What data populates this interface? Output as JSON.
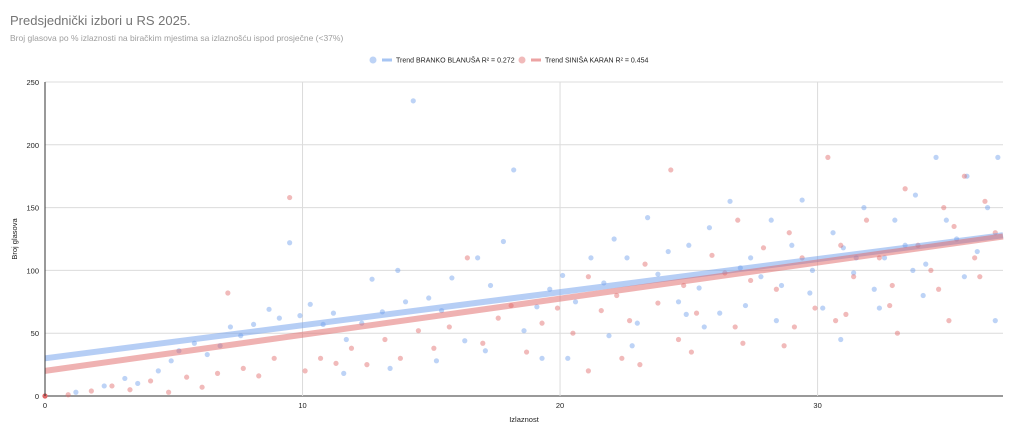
{
  "chart_data": {
    "type": "scatter",
    "title": "Predsjednički izbori u RS 2025.",
    "subtitle": "Broj glasova po % izlaznosti na biračkim mjestima sa izlaznošću ispod prosječne (<37%)",
    "xlabel": "Izlaznost",
    "ylabel": "Broj glasova",
    "xlim": [
      0,
      37.2
    ],
    "ylim": [
      0,
      250
    ],
    "x_ticks": [
      "0",
      "10",
      "20",
      "30"
    ],
    "y_ticks": [
      "0",
      "50",
      "100",
      "150",
      "200",
      "250"
    ],
    "grid": true,
    "legend_position": "top-center",
    "series": [
      {
        "name": "BRANKO BLANUŠA",
        "color": "#6d9eeb",
        "trend_label": "Trend BRANKO BLANUŠA R² = 0.272",
        "trend": {
          "x": [
            0,
            37.2
          ],
          "y": [
            30,
            128
          ]
        },
        "points": [
          [
            1.2,
            3
          ],
          [
            2.3,
            8
          ],
          [
            3.1,
            14
          ],
          [
            3.6,
            10
          ],
          [
            4.4,
            20
          ],
          [
            4.9,
            28
          ],
          [
            5.2,
            36
          ],
          [
            5.8,
            42
          ],
          [
            6.3,
            33
          ],
          [
            6.8,
            40
          ],
          [
            7.2,
            55
          ],
          [
            7.6,
            48
          ],
          [
            8.1,
            57
          ],
          [
            8.7,
            69
          ],
          [
            9.1,
            62
          ],
          [
            9.5,
            122
          ],
          [
            9.9,
            64
          ],
          [
            10.3,
            73
          ],
          [
            10.8,
            57
          ],
          [
            11.2,
            66
          ],
          [
            11.7,
            45
          ],
          [
            12.3,
            58
          ],
          [
            12.7,
            93
          ],
          [
            13.1,
            67
          ],
          [
            13.7,
            100
          ],
          [
            14.0,
            75
          ],
          [
            14.3,
            235
          ],
          [
            14.9,
            78
          ],
          [
            15.4,
            68
          ],
          [
            15.8,
            94
          ],
          [
            16.3,
            44
          ],
          [
            16.8,
            110
          ],
          [
            17.3,
            88
          ],
          [
            17.8,
            123
          ],
          [
            18.2,
            180
          ],
          [
            18.6,
            52
          ],
          [
            19.1,
            71
          ],
          [
            19.6,
            85
          ],
          [
            20.1,
            96
          ],
          [
            20.6,
            75
          ],
          [
            21.2,
            110
          ],
          [
            21.7,
            90
          ],
          [
            22.1,
            125
          ],
          [
            22.6,
            110
          ],
          [
            23.0,
            58
          ],
          [
            23.4,
            142
          ],
          [
            23.8,
            97
          ],
          [
            24.2,
            115
          ],
          [
            24.6,
            75
          ],
          [
            25.0,
            120
          ],
          [
            25.4,
            86
          ],
          [
            25.8,
            134
          ],
          [
            26.2,
            66
          ],
          [
            26.6,
            155
          ],
          [
            27.0,
            102
          ],
          [
            27.4,
            110
          ],
          [
            27.8,
            95
          ],
          [
            28.2,
            140
          ],
          [
            28.6,
            88
          ],
          [
            29.0,
            120
          ],
          [
            29.4,
            156
          ],
          [
            29.8,
            100
          ],
          [
            30.2,
            70
          ],
          [
            30.6,
            130
          ],
          [
            31.0,
            118
          ],
          [
            31.4,
            98
          ],
          [
            31.8,
            150
          ],
          [
            32.2,
            85
          ],
          [
            32.6,
            110
          ],
          [
            33.0,
            140
          ],
          [
            33.4,
            120
          ],
          [
            33.8,
            160
          ],
          [
            34.2,
            105
          ],
          [
            34.6,
            190
          ],
          [
            35.0,
            140
          ],
          [
            35.4,
            125
          ],
          [
            35.8,
            175
          ],
          [
            36.2,
            115
          ],
          [
            36.6,
            150
          ],
          [
            37.0,
            190
          ],
          [
            20.3,
            30
          ],
          [
            22.8,
            40
          ],
          [
            25.6,
            55
          ],
          [
            28.4,
            60
          ],
          [
            30.9,
            45
          ],
          [
            32.4,
            70
          ],
          [
            34.1,
            80
          ],
          [
            35.7,
            95
          ],
          [
            36.9,
            60
          ],
          [
            33.7,
            100
          ],
          [
            31.5,
            110
          ],
          [
            29.7,
            82
          ],
          [
            27.2,
            72
          ],
          [
            24.9,
            65
          ],
          [
            21.9,
            48
          ],
          [
            19.3,
            30
          ],
          [
            17.1,
            36
          ],
          [
            15.2,
            28
          ],
          [
            13.4,
            22
          ],
          [
            11.6,
            18
          ]
        ]
      },
      {
        "name": "SINIŠA KARAN",
        "color": "#e06666",
        "trend_label": "Trend SINIŠA KARAN R² = 0.454",
        "trend": {
          "x": [
            0,
            37.2
          ],
          "y": [
            20,
            127
          ]
        },
        "points": [
          [
            0.9,
            1
          ],
          [
            1.8,
            4
          ],
          [
            2.6,
            8
          ],
          [
            3.3,
            5
          ],
          [
            4.1,
            12
          ],
          [
            4.8,
            3
          ],
          [
            5.5,
            15
          ],
          [
            6.1,
            7
          ],
          [
            6.7,
            18
          ],
          [
            7.1,
            82
          ],
          [
            7.7,
            22
          ],
          [
            8.3,
            16
          ],
          [
            8.9,
            30
          ],
          [
            9.5,
            158
          ],
          [
            10.1,
            20
          ],
          [
            10.7,
            30
          ],
          [
            11.3,
            26
          ],
          [
            11.9,
            38
          ],
          [
            12.5,
            25
          ],
          [
            13.2,
            45
          ],
          [
            13.8,
            30
          ],
          [
            14.5,
            52
          ],
          [
            15.1,
            38
          ],
          [
            15.7,
            55
          ],
          [
            16.4,
            110
          ],
          [
            17.0,
            42
          ],
          [
            17.6,
            62
          ],
          [
            18.1,
            72
          ],
          [
            18.7,
            35
          ],
          [
            19.3,
            58
          ],
          [
            19.9,
            70
          ],
          [
            20.5,
            50
          ],
          [
            21.1,
            95
          ],
          [
            21.6,
            68
          ],
          [
            22.2,
            80
          ],
          [
            22.7,
            60
          ],
          [
            23.3,
            105
          ],
          [
            23.8,
            74
          ],
          [
            24.3,
            180
          ],
          [
            24.8,
            88
          ],
          [
            25.3,
            66
          ],
          [
            25.9,
            112
          ],
          [
            26.4,
            98
          ],
          [
            26.9,
            140
          ],
          [
            27.4,
            92
          ],
          [
            27.9,
            118
          ],
          [
            28.4,
            85
          ],
          [
            28.9,
            130
          ],
          [
            29.4,
            110
          ],
          [
            29.9,
            70
          ],
          [
            30.4,
            190
          ],
          [
            30.9,
            120
          ],
          [
            31.4,
            95
          ],
          [
            31.9,
            140
          ],
          [
            32.4,
            110
          ],
          [
            32.9,
            88
          ],
          [
            33.4,
            165
          ],
          [
            33.9,
            120
          ],
          [
            34.4,
            100
          ],
          [
            34.9,
            150
          ],
          [
            35.3,
            135
          ],
          [
            35.7,
            175
          ],
          [
            36.1,
            110
          ],
          [
            36.5,
            155
          ],
          [
            36.9,
            130
          ],
          [
            22.4,
            30
          ],
          [
            24.6,
            45
          ],
          [
            26.8,
            55
          ],
          [
            28.7,
            40
          ],
          [
            30.7,
            60
          ],
          [
            32.8,
            72
          ],
          [
            34.7,
            85
          ],
          [
            36.3,
            95
          ],
          [
            35.1,
            60
          ],
          [
            33.1,
            50
          ],
          [
            31.1,
            65
          ],
          [
            29.1,
            55
          ],
          [
            27.1,
            42
          ],
          [
            25.1,
            35
          ],
          [
            23.1,
            25
          ],
          [
            21.1,
            20
          ]
        ]
      }
    ]
  }
}
